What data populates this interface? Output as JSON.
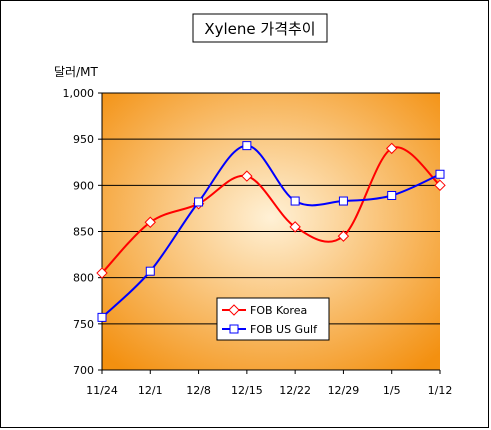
{
  "chart_data": {
    "type": "line",
    "title": "Xylene 가격추이",
    "ylabel": "달러/MT",
    "xlabel": "",
    "categories": [
      "11/24",
      "12/1",
      "12/8",
      "12/15",
      "12/22",
      "12/29",
      "1/5",
      "1/12"
    ],
    "ylim": [
      700,
      1000
    ],
    "yticks": [
      700,
      750,
      800,
      850,
      900,
      950,
      1000
    ],
    "ytick_labels": [
      "700",
      "750",
      "800",
      "850",
      "900",
      "950",
      "1,000"
    ],
    "grid": true,
    "legend_position": "bottom-center",
    "series": [
      {
        "name": "FOB Korea",
        "values": [
          805,
          860,
          880,
          910,
          855,
          845,
          940,
          900
        ],
        "color": "#ff0000",
        "marker": "diamond"
      },
      {
        "name": "FOB US Gulf",
        "values": [
          757,
          807,
          882,
          943,
          883,
          883,
          889,
          912
        ],
        "color": "#0000ff",
        "marker": "square"
      }
    ],
    "colors": {
      "plot_center": "#fff1d6",
      "plot_edge": "#f39010"
    }
  }
}
